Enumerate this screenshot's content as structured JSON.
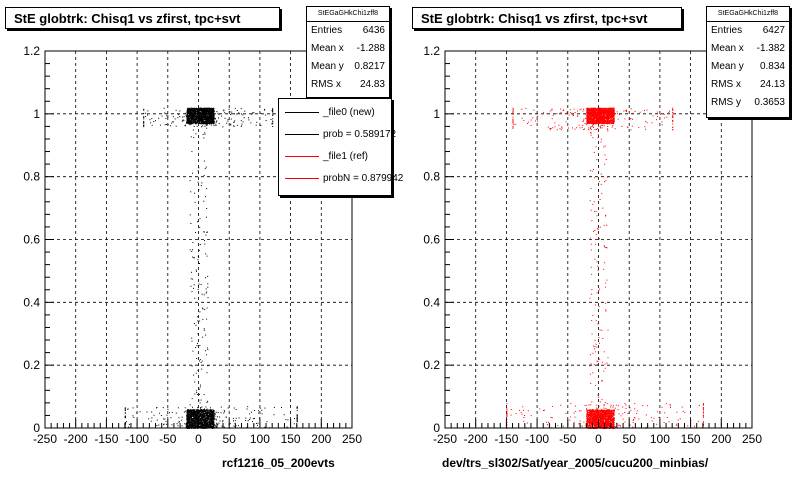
{
  "chart_data": [
    {
      "type": "scatter",
      "title": "StE globtrk: Chisq1 vs zfirst, tpc+svt",
      "xlim": [
        -250,
        250
      ],
      "ylim": [
        0,
        1.2
      ],
      "xticks": [
        "-250",
        "-200",
        "-150",
        "-100",
        "-50",
        "0",
        "50",
        "100",
        "150",
        "200",
        "250"
      ],
      "yticks": [
        "0",
        "0.2",
        "0.4",
        "0.6",
        "0.8",
        "1",
        "1.2"
      ],
      "grid": true,
      "xlabel": "rcf1216_05_200evts",
      "series": [
        {
          "name": "_file0 (new)",
          "color": "#000000",
          "clusters": [
            {
              "x": [
                -20,
                25
              ],
              "y": [
                0.97,
                1.02
              ],
              "density": "high"
            },
            {
              "x": [
                -20,
                25
              ],
              "y": [
                0.0,
                0.06
              ],
              "density": "high"
            },
            {
              "x": [
                -120,
                160
              ],
              "y": [
                0.0,
                0.07
              ],
              "density": "low"
            },
            {
              "x": [
                -90,
                120
              ],
              "y": [
                0.96,
                1.02
              ],
              "density": "low"
            },
            {
              "x": [
                -15,
                15
              ],
              "y": [
                0.06,
                0.97
              ],
              "density": "sparse"
            }
          ]
        }
      ],
      "stats": {
        "name": "StEGaGHkChi1zff8",
        "entries": "6436",
        "mean_x": "-1.288",
        "mean_y": "0.8217",
        "rms_x": "24.83"
      },
      "legend": {
        "placement": "top-right",
        "entries": [
          {
            "label": "_file0 (new)",
            "color": "#000000"
          },
          {
            "label": "prob = 0.589172",
            "color": "#000000"
          },
          {
            "label": "_file1 (ref)",
            "color": "#ff0000"
          },
          {
            "label": "probN = 0.879942",
            "color": "#ff0000"
          }
        ]
      }
    },
    {
      "type": "scatter",
      "title": "StE globtrk: Chisq1 vs zfirst, tpc+svt",
      "xlim": [
        -250,
        250
      ],
      "ylim": [
        0,
        1.2
      ],
      "xticks": [
        "-250",
        "-200",
        "-150",
        "-100",
        "-50",
        "0",
        "50",
        "100",
        "150",
        "200",
        "250"
      ],
      "yticks": [
        "0",
        "0.2",
        "0.4",
        "0.6",
        "0.8",
        "1",
        "1.2"
      ],
      "grid": true,
      "xlabel": "dev/trs_sl302/Sat/year_2005/cucu200_minbias/",
      "series": [
        {
          "name": "_file1 (ref)",
          "color": "#ff0000",
          "clusters": [
            {
              "x": [
                -20,
                25
              ],
              "y": [
                0.97,
                1.02
              ],
              "density": "high"
            },
            {
              "x": [
                -20,
                25
              ],
              "y": [
                0.0,
                0.06
              ],
              "density": "high"
            },
            {
              "x": [
                -150,
                170
              ],
              "y": [
                0.0,
                0.08
              ],
              "density": "low"
            },
            {
              "x": [
                -140,
                120
              ],
              "y": [
                0.95,
                1.02
              ],
              "density": "low"
            },
            {
              "x": [
                -15,
                15
              ],
              "y": [
                0.06,
                0.97
              ],
              "density": "sparse"
            }
          ]
        }
      ],
      "stats": {
        "name": "StEGaGHkChi1zff8",
        "entries": "6427",
        "mean_x": "-1.382",
        "mean_y": "0.834",
        "rms_x": "24.13",
        "rms_y": "0.3653"
      }
    }
  ],
  "labels": {
    "entries": "Entries",
    "mean_x": "Mean x",
    "mean_y": "Mean y",
    "rms_x": "RMS x",
    "rms_y": "RMS y"
  }
}
